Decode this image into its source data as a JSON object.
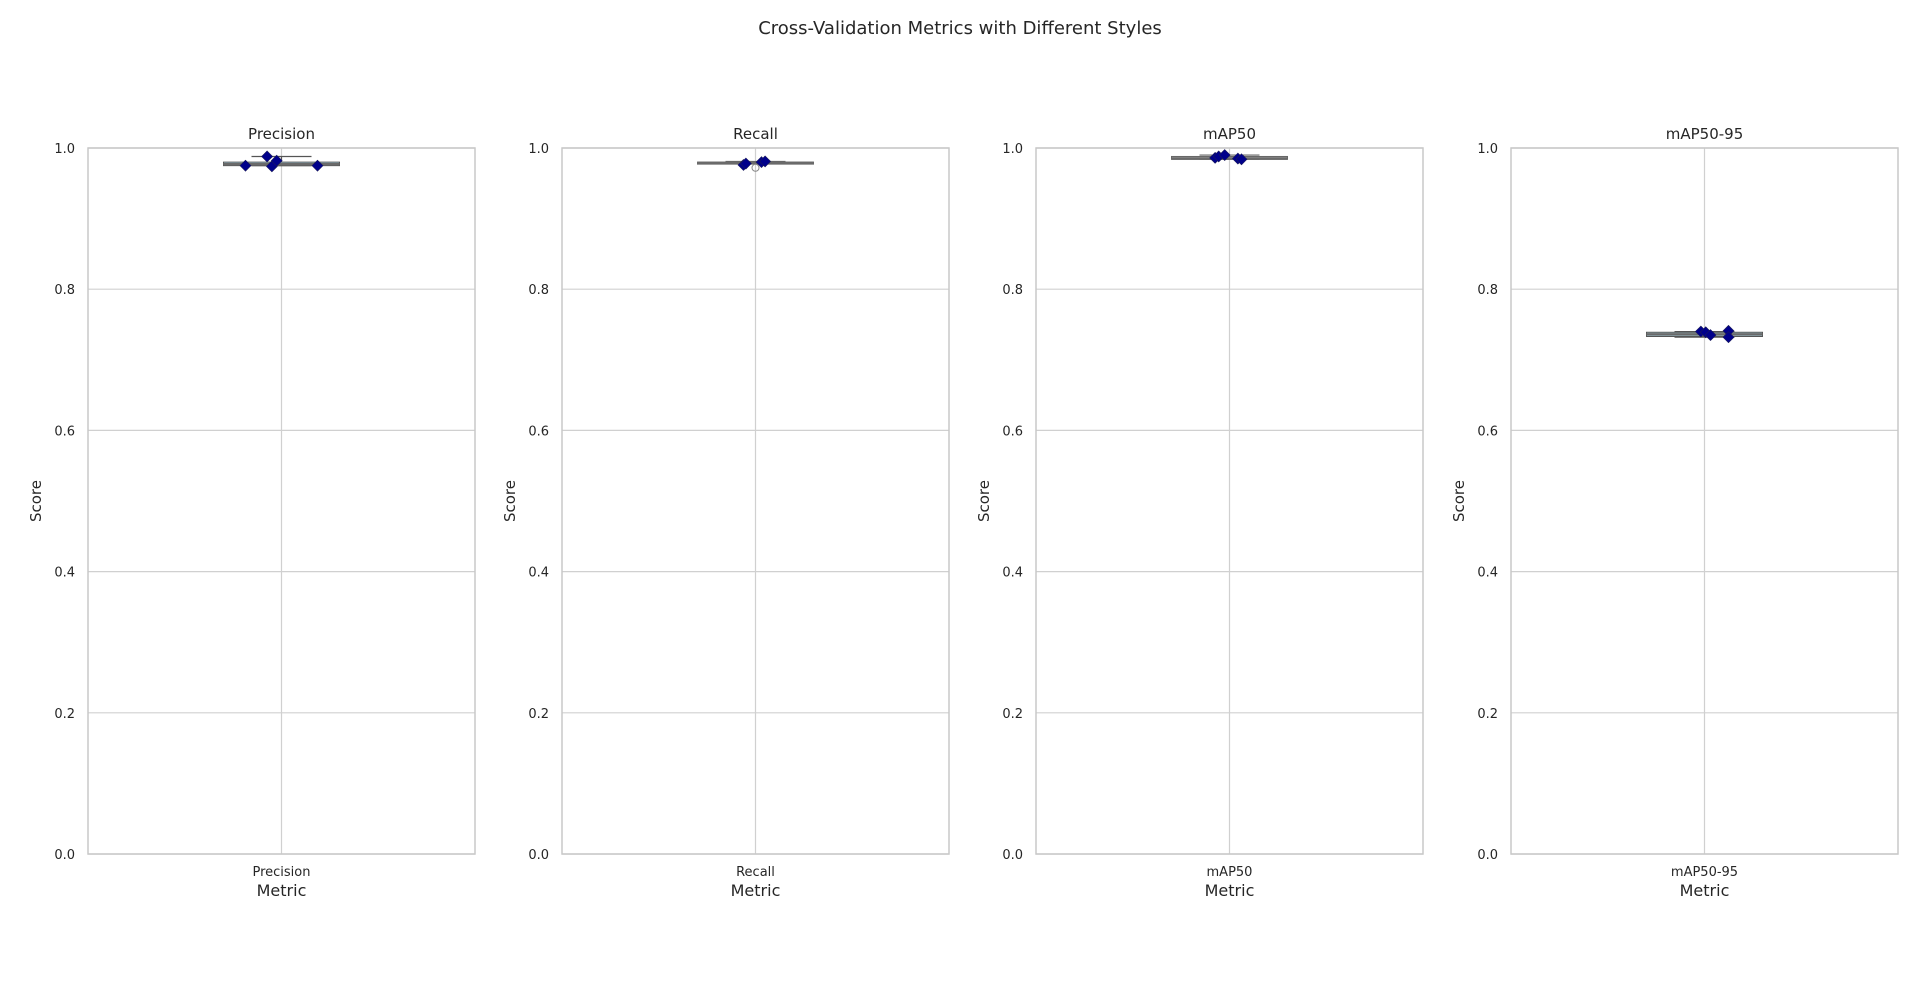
{
  "figure": {
    "title": "Cross-Validation Metrics with Different Styles",
    "background": "#ffffff"
  },
  "chart_data": [
    {
      "type": "box",
      "title": "Precision",
      "xlabel": "Metric",
      "ylabel": "Score",
      "ylim": [
        0,
        1
      ],
      "yticks": [
        "0.0",
        "0.2",
        "0.4",
        "0.6",
        "0.8",
        "1.0"
      ],
      "categories": [
        "Precision"
      ],
      "grid": true,
      "box": {
        "whisker_low": 0.975,
        "q1": 0.975,
        "median": 0.977,
        "q3": 0.98,
        "whisker_high": 0.988,
        "fill": "#add8e6",
        "edge": "#555555",
        "median_color": "#6a6a6a"
      },
      "points": [
        {
          "offset": -0.3,
          "y": 0.975
        },
        {
          "offset": -0.12,
          "y": 0.988
        },
        {
          "offset": -0.08,
          "y": 0.974
        },
        {
          "offset": -0.04,
          "y": 0.982
        },
        {
          "offset": 0.3,
          "y": 0.975
        }
      ],
      "point_color": "#00008b"
    },
    {
      "type": "box",
      "title": "Recall",
      "xlabel": "Metric",
      "ylabel": "Score",
      "ylim": [
        0,
        1
      ],
      "yticks": [
        "0.0",
        "0.2",
        "0.4",
        "0.6",
        "0.8",
        "1.0"
      ],
      "categories": [
        "Recall"
      ],
      "grid": true,
      "box": {
        "whisker_low": 0.978,
        "q1": 0.978,
        "median": 0.979,
        "q3": 0.98,
        "whisker_high": 0.981,
        "fill": "#a0a0a0",
        "edge": "#666666",
        "median_color": "#6a6a6a"
      },
      "outliers": [
        0.972
      ],
      "points": [
        {
          "offset": -0.1,
          "y": 0.976
        },
        {
          "offset": -0.08,
          "y": 0.978
        },
        {
          "offset": 0.05,
          "y": 0.98
        },
        {
          "offset": 0.08,
          "y": 0.981
        }
      ],
      "point_color": "#00008b"
    },
    {
      "type": "box",
      "title": "mAP50",
      "xlabel": "Metric",
      "ylabel": "Score",
      "ylim": [
        0,
        1
      ],
      "yticks": [
        "0.0",
        "0.2",
        "0.4",
        "0.6",
        "0.8",
        "1.0"
      ],
      "categories": [
        "mAP50"
      ],
      "grid": true,
      "box": {
        "whisker_low": 0.984,
        "q1": 0.984,
        "median": 0.985,
        "q3": 0.988,
        "whisker_high": 0.99,
        "fill": "#a0a0a0",
        "edge": "#666666",
        "median_color": "#6a6a6a"
      },
      "points": [
        {
          "offset": -0.12,
          "y": 0.986
        },
        {
          "offset": -0.09,
          "y": 0.988
        },
        {
          "offset": -0.04,
          "y": 0.99
        },
        {
          "offset": 0.07,
          "y": 0.985
        },
        {
          "offset": 0.1,
          "y": 0.984
        }
      ],
      "point_color": "#00008b"
    },
    {
      "type": "box",
      "title": "mAP50-95",
      "xlabel": "Metric",
      "ylabel": "Score",
      "ylim": [
        0,
        1
      ],
      "yticks": [
        "0.0",
        "0.2",
        "0.4",
        "0.6",
        "0.8",
        "1.0"
      ],
      "categories": [
        "mAP50-95"
      ],
      "grid": true,
      "box": {
        "whisker_low": 0.732,
        "q1": 0.733,
        "median": 0.736,
        "q3": 0.739,
        "whisker_high": 0.74,
        "fill": "#add8e6",
        "edge": "#555555",
        "median_color": "#6a6a6a"
      },
      "points": [
        {
          "offset": -0.03,
          "y": 0.74
        },
        {
          "offset": 0.01,
          "y": 0.739
        },
        {
          "offset": 0.05,
          "y": 0.735
        },
        {
          "offset": 0.2,
          "y": 0.741
        },
        {
          "offset": 0.2,
          "y": 0.732
        }
      ],
      "point_color": "#00008b"
    }
  ]
}
